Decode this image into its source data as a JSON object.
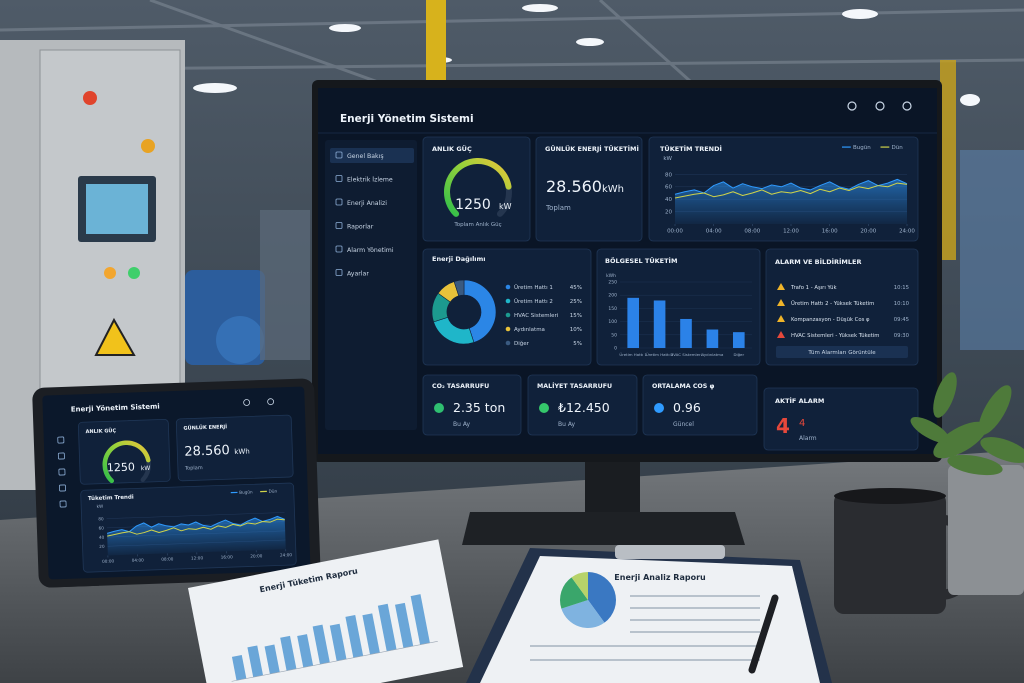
{
  "monitor": {
    "title": "Enerji Yönetim Sistemi",
    "nav": [
      "Genel Bakış",
      "Elektrik İzleme",
      "Enerji Analizi",
      "Raporlar",
      "Alarm Yönetimi",
      "Ayarlar"
    ],
    "power": {
      "title": "ANLIK GÜÇ",
      "value": "1250",
      "unit": "kW",
      "caption": "Toplam Anlık Güç"
    },
    "daily": {
      "title": "GÜNLÜK ENERJİ TÜKETİMİ",
      "value": "28.560",
      "unit": "kWh",
      "caption": "Toplam"
    },
    "trend": {
      "type": "line",
      "title": "TÜKETİM TRENDİ",
      "y_label": "kW",
      "x": [
        0,
        1,
        2,
        3,
        4,
        5,
        6,
        7,
        8,
        9,
        10,
        11,
        12,
        13,
        14,
        15,
        16,
        17,
        18,
        19,
        20,
        21,
        22,
        23,
        24
      ],
      "xlim": [
        0,
        24
      ],
      "xticks": [
        {
          "value": 0,
          "label": "00:00"
        },
        {
          "value": 4,
          "label": "04:00"
        },
        {
          "value": 8,
          "label": "08:00"
        },
        {
          "value": 12,
          "label": "12:00"
        },
        {
          "value": 16,
          "label": "16:00"
        },
        {
          "value": 20,
          "label": "20:00"
        },
        {
          "value": 24,
          "label": "24:00"
        }
      ],
      "ylim": [
        0,
        100
      ],
      "yticks": [
        20,
        40,
        60,
        80
      ],
      "series": [
        {
          "name": "Bugün",
          "color": "#2f9bff",
          "values": [
            48,
            52,
            55,
            50,
            62,
            68,
            58,
            65,
            60,
            57,
            63,
            60,
            66,
            58,
            55,
            62,
            68,
            60,
            56,
            64,
            70,
            62,
            66,
            72,
            65
          ]
        },
        {
          "name": "Dün",
          "color": "#cfd34a",
          "values": [
            42,
            45,
            48,
            50,
            44,
            47,
            52,
            46,
            50,
            55,
            48,
            52,
            50,
            54,
            49,
            56,
            52,
            58,
            54,
            60,
            57,
            62,
            60,
            66,
            64
          ]
        }
      ]
    },
    "distribution": {
      "type": "pie",
      "title": "Enerji Dağılımı",
      "categories": [
        "Üretim Hattı 1",
        "Üretim Hattı 2",
        "HVAC Sistemleri",
        "Aydınlatma",
        "Diğer"
      ],
      "values": [
        45,
        25,
        15,
        10,
        5
      ],
      "value_labels": [
        "45%",
        "25%",
        "15%",
        "10%",
        "5%"
      ],
      "colors": [
        "#2b86e6",
        "#1fb6c9",
        "#1c9a8f",
        "#e8c23a",
        "#3a5a80"
      ]
    },
    "regional": {
      "type": "bar",
      "title": "BÖLGESEL TÜKETİM",
      "y_label": "kWh",
      "categories": [
        "Üretim Hattı 1",
        "Üretim Hattı 2",
        "HVAC Sistemleri",
        "Aydınlatma",
        "Diğer"
      ],
      "values": [
        190,
        180,
        110,
        70,
        60
      ],
      "ylim": [
        0,
        250
      ],
      "yticks": [
        0,
        50,
        100,
        150,
        200,
        250
      ],
      "color": "#2b82e8"
    },
    "alarms": {
      "title": "ALARM VE BİLDİRİMLER",
      "items": [
        {
          "text": "Trafo 1 - Aşırı Yük",
          "time": "10:15",
          "color": "#f0b429"
        },
        {
          "text": "Üretim Hattı 2 - Yüksek Tüketim",
          "time": "10:10",
          "color": "#f0b429"
        },
        {
          "text": "Kompanzasyon - Düşük Cos φ",
          "time": "09:45",
          "color": "#f0b429"
        },
        {
          "text": "HVAC Sistemleri - Yüksek Tüketim",
          "time": "09:30",
          "color": "#e5483b"
        }
      ],
      "button": "Tüm Alarmları Görüntüle"
    },
    "kpis": [
      {
        "title": "CO₂ TASARRUFU",
        "value": "2.35 ton",
        "caption": "Bu Ay",
        "color": "#2fbf71"
      },
      {
        "title": "MALİYET TASARRUFU",
        "value": "₺12.450",
        "caption": "Bu Ay",
        "color": "#35c76b"
      },
      {
        "title": "ORTALAMA COS φ",
        "value": "0.96",
        "caption": "Güncel",
        "color": "#2f9bff"
      }
    ],
    "active_alarm": {
      "title": "AKTİF ALARM",
      "big": "4",
      "count": "4",
      "caption": "Alarm",
      "color": "#e5483b"
    }
  },
  "tablet": {
    "title": "Enerji Yönetim Sistemi",
    "power_title": "ANLIK GÜÇ",
    "power_value": "1250",
    "power_unit": "kW",
    "daily_title": "GÜNLÜK ENERJİ",
    "daily_value": "28.560",
    "daily_unit": "kWh",
    "daily_caption": "Toplam",
    "trend_title": "Tüketim Trendi"
  },
  "papers": {
    "left": {
      "title": "Enerji Tüketim Raporu",
      "bars": [
        30,
        38,
        35,
        42,
        40,
        48,
        45,
        52,
        50,
        58,
        55,
        62
      ],
      "color": "#6aa6d8"
    },
    "right": {
      "title": "Enerji Analiz Raporu",
      "pie": [
        40,
        30,
        20,
        10
      ],
      "colors": [
        "#3a78c2",
        "#7fb3e0",
        "#3aa66b",
        "#b7d36a"
      ]
    }
  }
}
